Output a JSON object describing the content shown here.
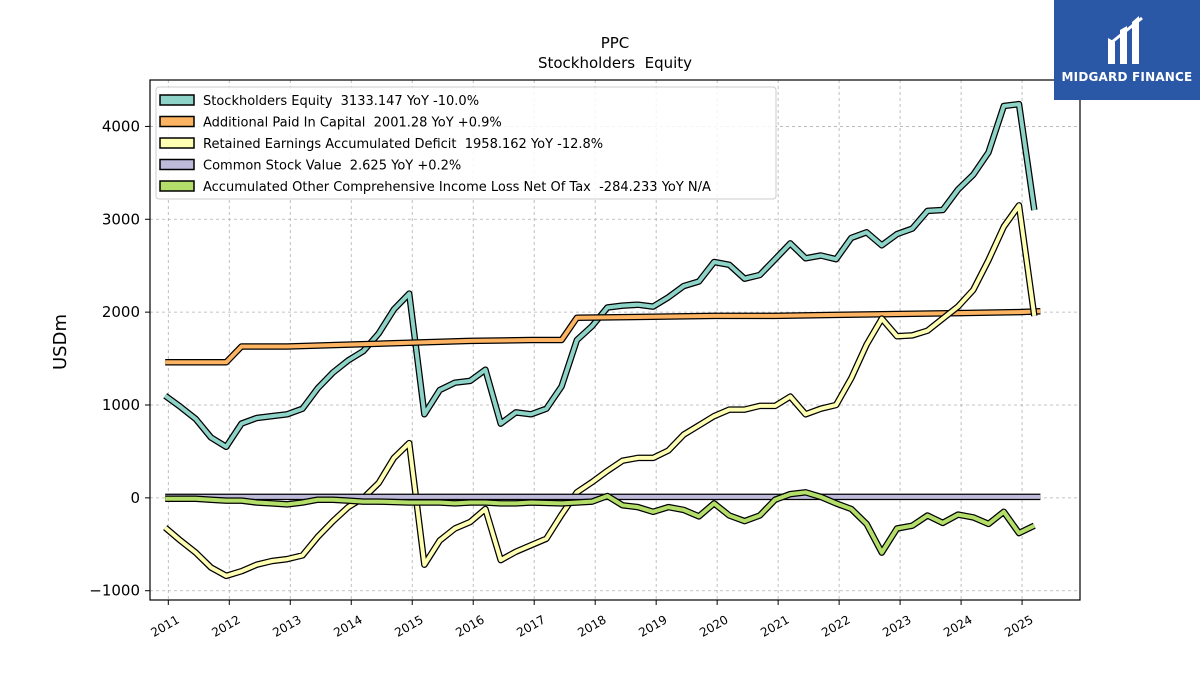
{
  "logo": {
    "text": "MIDGARD FINANCE"
  },
  "chart_data": {
    "type": "line",
    "title": "PPC",
    "subtitle": "Stockholders  Equity",
    "xlabel": "",
    "ylabel": "USDm",
    "ylim": [
      -1100,
      4500
    ],
    "xlim": [
      2010.7,
      2025.95
    ],
    "yticks": [
      -1000,
      0,
      1000,
      2000,
      3000,
      4000
    ],
    "ytick_labels": [
      "−1000",
      "0",
      "1000",
      "2000",
      "3000",
      "4000"
    ],
    "xticks": [
      2011,
      2012,
      2013,
      2014,
      2015,
      2016,
      2017,
      2018,
      2019,
      2020,
      2021,
      2022,
      2023,
      2024,
      2025
    ],
    "xtick_labels": [
      "2011",
      "2012",
      "2013",
      "2014",
      "2015",
      "2016",
      "2017",
      "2018",
      "2019",
      "2020",
      "2021",
      "2022",
      "2023",
      "2024",
      "2025"
    ],
    "grid": true,
    "legend_position": "top-left",
    "series": [
      {
        "name": "Stockholders Equity  3133.147 YoY -10.0%",
        "color": "#8dd3c7",
        "points": [
          [
            2010.95,
            1100
          ],
          [
            2011.2,
            980
          ],
          [
            2011.45,
            850
          ],
          [
            2011.7,
            650
          ],
          [
            2011.95,
            550
          ],
          [
            2012.2,
            800
          ],
          [
            2012.45,
            860
          ],
          [
            2012.7,
            880
          ],
          [
            2012.95,
            900
          ],
          [
            2013.2,
            960
          ],
          [
            2013.45,
            1180
          ],
          [
            2013.7,
            1350
          ],
          [
            2013.95,
            1480
          ],
          [
            2014.2,
            1580
          ],
          [
            2014.45,
            1770
          ],
          [
            2014.7,
            2030
          ],
          [
            2014.95,
            2200
          ],
          [
            2015.2,
            900
          ],
          [
            2015.45,
            1160
          ],
          [
            2015.7,
            1240
          ],
          [
            2015.95,
            1260
          ],
          [
            2016.2,
            1380
          ],
          [
            2016.45,
            800
          ],
          [
            2016.7,
            920
          ],
          [
            2016.95,
            900
          ],
          [
            2017.2,
            960
          ],
          [
            2017.45,
            1200
          ],
          [
            2017.7,
            1700
          ],
          [
            2017.95,
            1850
          ],
          [
            2018.2,
            2050
          ],
          [
            2018.45,
            2070
          ],
          [
            2018.7,
            2080
          ],
          [
            2018.95,
            2060
          ],
          [
            2019.2,
            2160
          ],
          [
            2019.45,
            2280
          ],
          [
            2019.7,
            2330
          ],
          [
            2019.95,
            2540
          ],
          [
            2020.2,
            2510
          ],
          [
            2020.45,
            2360
          ],
          [
            2020.7,
            2400
          ],
          [
            2020.95,
            2570
          ],
          [
            2021.2,
            2740
          ],
          [
            2021.45,
            2580
          ],
          [
            2021.7,
            2610
          ],
          [
            2021.95,
            2570
          ],
          [
            2022.2,
            2800
          ],
          [
            2022.45,
            2860
          ],
          [
            2022.7,
            2720
          ],
          [
            2022.95,
            2840
          ],
          [
            2023.2,
            2900
          ],
          [
            2023.45,
            3090
          ],
          [
            2023.7,
            3100
          ],
          [
            2023.95,
            3320
          ],
          [
            2024.2,
            3480
          ],
          [
            2024.45,
            3720
          ],
          [
            2024.7,
            4220
          ],
          [
            2024.95,
            4240
          ],
          [
            2025.2,
            3100
          ]
        ]
      },
      {
        "name": "Additional Paid In Capital  2001.28 YoY +0.9%",
        "color": "#fdb462",
        "points": [
          [
            2010.95,
            1460
          ],
          [
            2011.95,
            1460
          ],
          [
            2012.2,
            1630
          ],
          [
            2012.95,
            1630
          ],
          [
            2013.95,
            1650
          ],
          [
            2014.95,
            1670
          ],
          [
            2015.95,
            1690
          ],
          [
            2016.95,
            1700
          ],
          [
            2017.45,
            1700
          ],
          [
            2017.7,
            1940
          ],
          [
            2018.95,
            1950
          ],
          [
            2019.95,
            1960
          ],
          [
            2020.95,
            1960
          ],
          [
            2021.95,
            1970
          ],
          [
            2022.95,
            1980
          ],
          [
            2023.95,
            1990
          ],
          [
            2024.95,
            2000
          ],
          [
            2025.3,
            2010
          ]
        ]
      },
      {
        "name": "Retained Earnings Accumulated Deficit  1958.162 YoY -12.8%",
        "color": "#ffffb3",
        "points": [
          [
            2010.95,
            -320
          ],
          [
            2011.2,
            -460
          ],
          [
            2011.45,
            -590
          ],
          [
            2011.7,
            -750
          ],
          [
            2011.95,
            -840
          ],
          [
            2012.2,
            -790
          ],
          [
            2012.45,
            -720
          ],
          [
            2012.7,
            -680
          ],
          [
            2012.95,
            -660
          ],
          [
            2013.2,
            -620
          ],
          [
            2013.45,
            -420
          ],
          [
            2013.7,
            -250
          ],
          [
            2013.95,
            -100
          ],
          [
            2014.2,
            0
          ],
          [
            2014.45,
            160
          ],
          [
            2014.7,
            430
          ],
          [
            2014.95,
            590
          ],
          [
            2015.2,
            -720
          ],
          [
            2015.45,
            -460
          ],
          [
            2015.7,
            -330
          ],
          [
            2015.95,
            -260
          ],
          [
            2016.2,
            -120
          ],
          [
            2016.45,
            -670
          ],
          [
            2016.7,
            -580
          ],
          [
            2016.95,
            -510
          ],
          [
            2017.2,
            -440
          ],
          [
            2017.45,
            -180
          ],
          [
            2017.7,
            60
          ],
          [
            2017.95,
            170
          ],
          [
            2018.2,
            290
          ],
          [
            2018.45,
            400
          ],
          [
            2018.7,
            430
          ],
          [
            2018.95,
            430
          ],
          [
            2019.2,
            510
          ],
          [
            2019.45,
            680
          ],
          [
            2019.7,
            780
          ],
          [
            2019.95,
            880
          ],
          [
            2020.2,
            950
          ],
          [
            2020.45,
            950
          ],
          [
            2020.7,
            990
          ],
          [
            2020.95,
            990
          ],
          [
            2021.2,
            1090
          ],
          [
            2021.45,
            900
          ],
          [
            2021.7,
            960
          ],
          [
            2021.95,
            1000
          ],
          [
            2022.2,
            1290
          ],
          [
            2022.45,
            1650
          ],
          [
            2022.7,
            1930
          ],
          [
            2022.95,
            1740
          ],
          [
            2023.2,
            1750
          ],
          [
            2023.45,
            1800
          ],
          [
            2023.7,
            1930
          ],
          [
            2023.95,
            2060
          ],
          [
            2024.2,
            2240
          ],
          [
            2024.45,
            2560
          ],
          [
            2024.7,
            2920
          ],
          [
            2024.95,
            3150
          ],
          [
            2025.2,
            1960
          ]
        ]
      },
      {
        "name": "Common Stock Value  2.625 YoY +0.2%",
        "color": "#bebada",
        "points": [
          [
            2010.95,
            10
          ],
          [
            2025.3,
            10
          ]
        ]
      },
      {
        "name": "Accumulated Other Comprehensive Income Loss Net Of Tax  -284.233 YoY N/A",
        "color": "#b3de69",
        "points": [
          [
            2010.95,
            -10
          ],
          [
            2011.45,
            -10
          ],
          [
            2011.7,
            -20
          ],
          [
            2011.95,
            -30
          ],
          [
            2012.2,
            -30
          ],
          [
            2012.45,
            -50
          ],
          [
            2012.7,
            -60
          ],
          [
            2012.95,
            -70
          ],
          [
            2013.2,
            -50
          ],
          [
            2013.45,
            -20
          ],
          [
            2013.7,
            -20
          ],
          [
            2013.95,
            -30
          ],
          [
            2014.2,
            -40
          ],
          [
            2014.45,
            -40
          ],
          [
            2014.95,
            -50
          ],
          [
            2015.2,
            -50
          ],
          [
            2015.45,
            -50
          ],
          [
            2015.7,
            -60
          ],
          [
            2015.95,
            -50
          ],
          [
            2016.2,
            -50
          ],
          [
            2016.45,
            -60
          ],
          [
            2016.7,
            -60
          ],
          [
            2016.95,
            -50
          ],
          [
            2017.45,
            -60
          ],
          [
            2017.7,
            -50
          ],
          [
            2017.95,
            -40
          ],
          [
            2018.2,
            20
          ],
          [
            2018.45,
            -80
          ],
          [
            2018.7,
            -100
          ],
          [
            2018.95,
            -150
          ],
          [
            2019.2,
            -100
          ],
          [
            2019.45,
            -130
          ],
          [
            2019.7,
            -200
          ],
          [
            2019.95,
            -60
          ],
          [
            2020.2,
            -190
          ],
          [
            2020.45,
            -250
          ],
          [
            2020.7,
            -190
          ],
          [
            2020.95,
            -20
          ],
          [
            2021.2,
            40
          ],
          [
            2021.45,
            60
          ],
          [
            2021.7,
            10
          ],
          [
            2021.95,
            -60
          ],
          [
            2022.2,
            -120
          ],
          [
            2022.45,
            -280
          ],
          [
            2022.7,
            -590
          ],
          [
            2022.95,
            -330
          ],
          [
            2023.2,
            -300
          ],
          [
            2023.45,
            -190
          ],
          [
            2023.7,
            -270
          ],
          [
            2023.95,
            -180
          ],
          [
            2024.2,
            -210
          ],
          [
            2024.45,
            -280
          ],
          [
            2024.7,
            -150
          ],
          [
            2024.95,
            -380
          ],
          [
            2025.2,
            -300
          ]
        ]
      }
    ]
  }
}
